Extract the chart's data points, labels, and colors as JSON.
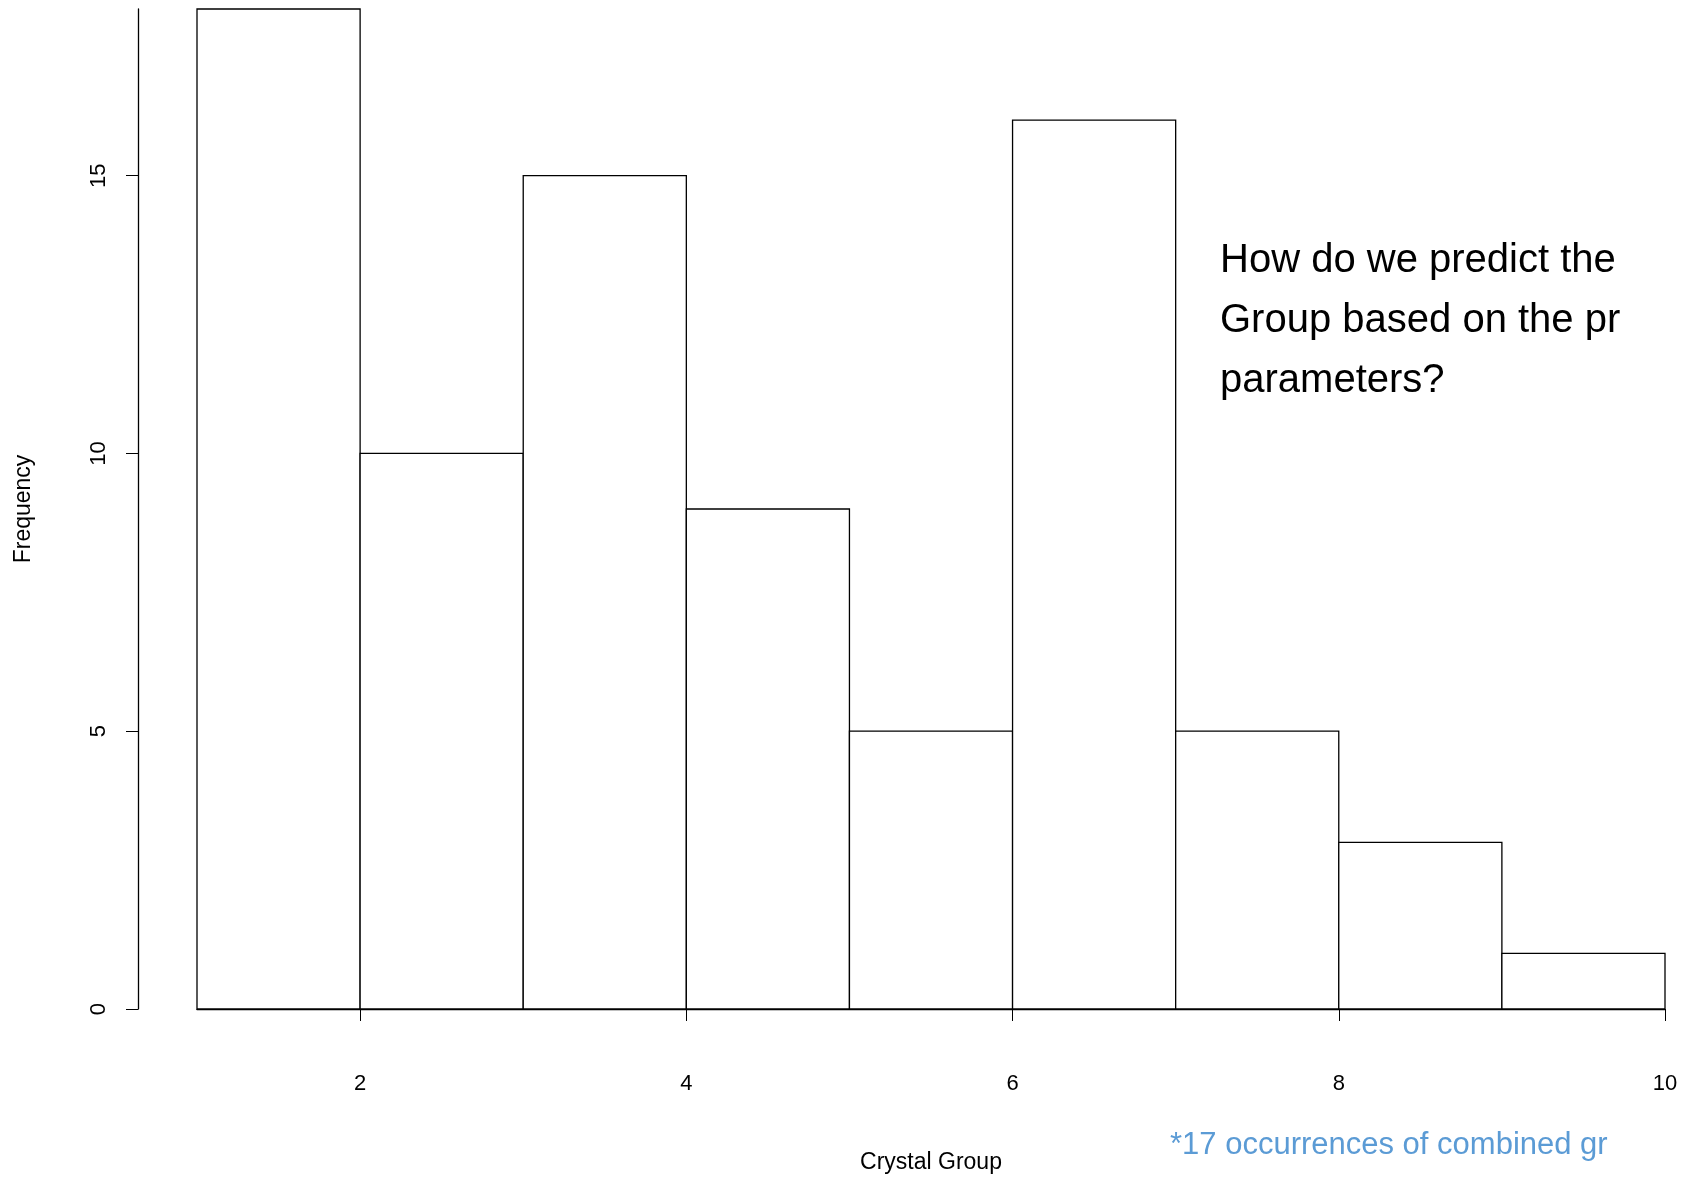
{
  "chart_data": {
    "type": "histogram",
    "xlabel": "Crystal Group",
    "ylabel": "Frequency",
    "bins": [
      1,
      2,
      3,
      4,
      5,
      6,
      7,
      8,
      9,
      10
    ],
    "values": [
      18,
      10,
      15,
      9,
      5,
      16,
      5,
      3,
      1
    ],
    "color": "#ffffff",
    "xlim": [
      1,
      10
    ],
    "xticks": [
      2,
      4,
      6,
      8,
      10
    ],
    "ylim": [
      0,
      18
    ],
    "yticks": [
      0,
      5,
      10,
      15
    ],
    "grid": false,
    "annotations": [
      "How do we predict the\nGroup based on the pr\nparameters?",
      "*17 occurrences of combined gr"
    ]
  }
}
